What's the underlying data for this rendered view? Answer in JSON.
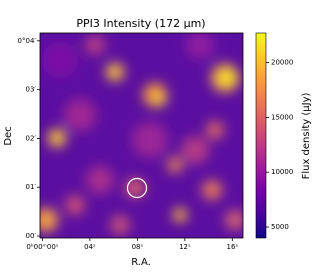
{
  "chart_data": {
    "type": "image",
    "title": "PPI3 Intensity (172 μm)",
    "x_label": "R.A.",
    "y_label": "Dec",
    "colorbar_label": "Flux density (μJy)",
    "colormap": "plasma",
    "xlim": [
      -0.2,
      16.9
    ],
    "xticks": [
      {
        "value": 0,
        "label": "0ʰ00ᵐ00ˢ"
      },
      {
        "value": 4,
        "label": "04ˢ"
      },
      {
        "value": 8,
        "label": "08ˢ"
      },
      {
        "value": 12,
        "label": "12ˢ"
      },
      {
        "value": 16,
        "label": "16ˢ"
      }
    ],
    "ylim": [
      -0.04,
      4.16
    ],
    "yticks": [
      {
        "value": 4,
        "label": "0°04′"
      },
      {
        "value": 3,
        "label": "03′"
      },
      {
        "value": 2,
        "label": "02′"
      },
      {
        "value": 1,
        "label": "01′"
      },
      {
        "value": 0,
        "label": "00′"
      }
    ],
    "clim": [
      4000,
      22700
    ],
    "cticks": [
      5000,
      10000,
      15000,
      20000
    ]
  }
}
